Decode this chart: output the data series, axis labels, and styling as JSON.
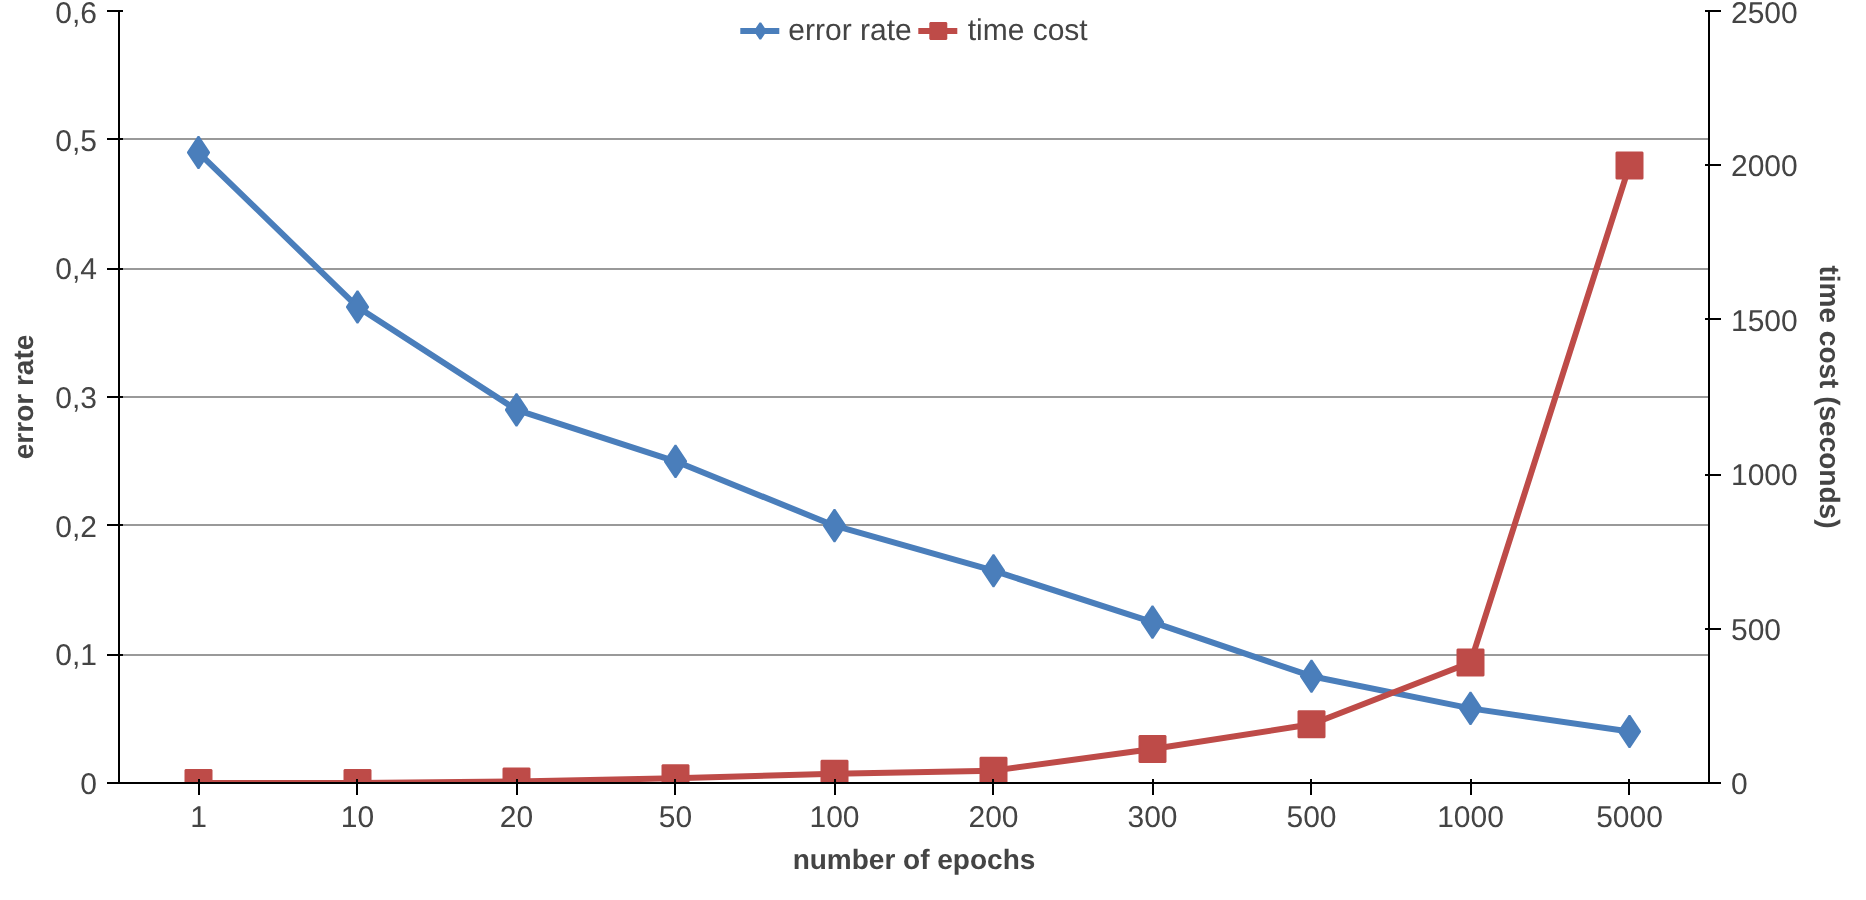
{
  "chart_data": {
    "type": "line",
    "xlabel": "number of epochs",
    "ylabel": "error rate",
    "y2label": "time cost (seconds)",
    "categories": [
      "1",
      "10",
      "20",
      "50",
      "100",
      "200",
      "300",
      "500",
      "1000",
      "5000"
    ],
    "series": [
      {
        "name": "error rate",
        "color": "#4a7ebb",
        "marker": "diamond",
        "values": [
          0.49,
          0.37,
          0.29,
          0.25,
          0.2,
          0.165,
          0.125,
          0.083,
          0.058,
          0.04
        ]
      },
      {
        "name": "time cost",
        "color": "#be4b48",
        "marker": "square",
        "axis": "y2",
        "values": [
          0,
          0,
          5,
          15,
          30,
          40,
          110,
          190,
          390,
          2000
        ]
      }
    ],
    "ylim": [
      0,
      0.6
    ],
    "yticks": [
      0,
      {
        "value": 0.1,
        "label": "0,1"
      },
      {
        "value": 0.2,
        "label": "0,2"
      },
      {
        "value": 0.3,
        "label": "0,3"
      },
      {
        "value": 0.4,
        "label": "0,4"
      },
      {
        "value": 0.5,
        "label": "0,5"
      },
      {
        "value": 0.6,
        "label": "0,6"
      }
    ],
    "y2lim": [
      0,
      2500
    ],
    "y2ticks": [
      0,
      500,
      1000,
      1500,
      2000,
      2500
    ],
    "grid": "y",
    "legend": "top",
    "line_style": "solid"
  }
}
